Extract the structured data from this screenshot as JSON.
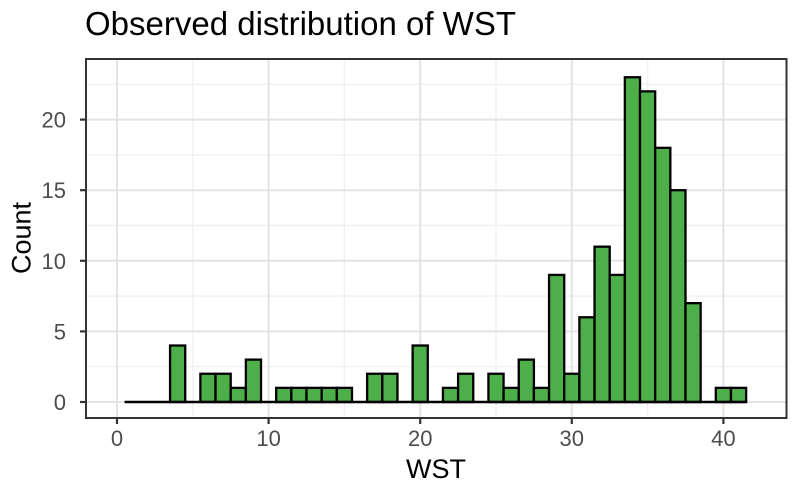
{
  "figure": {
    "title": "Observed distribution of WST"
  },
  "chart_data": {
    "type": "bar",
    "chart_kind": "histogram",
    "title": "Observed distribution of WST",
    "xlabel": "WST",
    "ylabel": "Count",
    "bin_width": 1,
    "bin_centers": [
      1,
      2,
      3,
      4,
      5,
      6,
      7,
      8,
      9,
      10,
      11,
      12,
      13,
      14,
      15,
      16,
      17,
      18,
      19,
      20,
      21,
      22,
      23,
      24,
      25,
      26,
      27,
      28,
      29,
      30,
      31,
      32,
      33,
      34,
      35,
      36,
      37,
      38,
      39,
      40,
      41
    ],
    "counts": [
      0,
      0,
      0,
      4,
      0,
      2,
      2,
      1,
      3,
      0,
      1,
      1,
      1,
      1,
      1,
      0,
      2,
      2,
      0,
      4,
      0,
      1,
      2,
      0,
      2,
      1,
      3,
      1,
      9,
      2,
      6,
      11,
      9,
      23,
      22,
      18,
      15,
      7,
      0,
      1,
      1
    ],
    "x_ticks": [
      0,
      10,
      20,
      30,
      40
    ],
    "x_minor_ticks": [
      5,
      15,
      25,
      35
    ],
    "y_ticks": [
      0,
      5,
      10,
      15,
      20
    ],
    "y_minor_ticks": [
      2.5,
      7.5,
      12.5,
      17.5,
      22.5
    ],
    "xlim": [
      -1.55,
      43.55
    ],
    "ylim": [
      -1.15,
      24.15
    ],
    "baseline_extent": [
      0.5,
      41.5
    ],
    "grid": "on",
    "legend": "none",
    "colors": {
      "bar_fill": "#4daf4a",
      "bar_stroke": "#000000",
      "panel_background": "#ffffff",
      "figure_background": "#ffffff",
      "grid_major": "#e3e3e3",
      "grid_minor": "#f0f0f0",
      "panel_border": "#333333",
      "tick_mark": "#333333",
      "tick_label": "#4d4d4d",
      "title_color": "#000000",
      "axis_title_color": "#000000"
    }
  }
}
